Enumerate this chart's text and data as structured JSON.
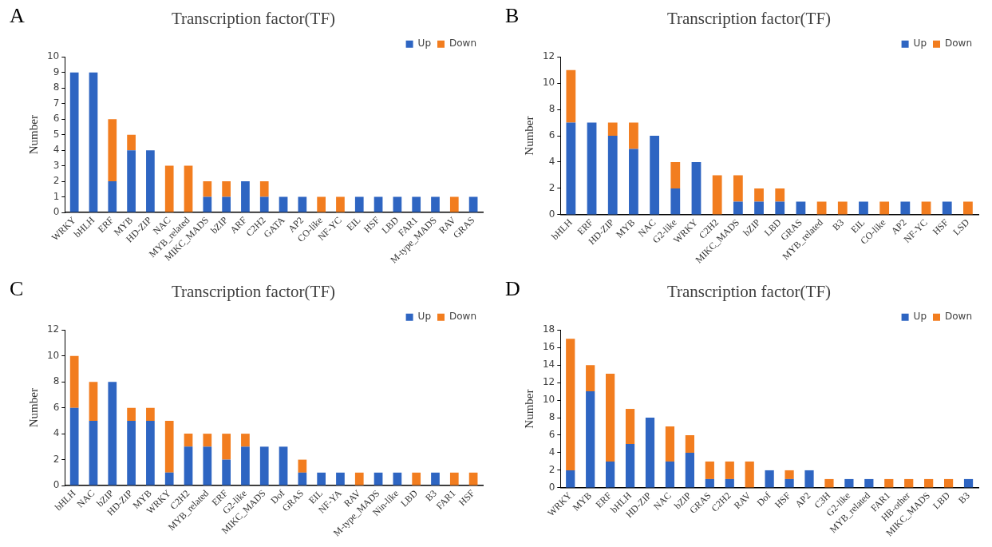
{
  "chart_data": [
    {
      "type": "bar",
      "title": "Transcription factor(TF)",
      "ylabel": "Number",
      "annotations": [
        "A"
      ],
      "stacked": true,
      "legend": "top right",
      "grid": false,
      "categories": [
        "WRKY",
        "bHLH",
        "ERF",
        "MYB",
        "HD-ZIP",
        "NAC",
        "MYB_related",
        "MIKC_MADS",
        "bZIP",
        "ARF",
        "C2H2",
        "GATA",
        "AP2",
        "CO-like",
        "NF-YC",
        "EIL",
        "HSF",
        "LBD",
        "FAR1",
        "M-type_MADS",
        "RAV",
        "GRAS"
      ],
      "series": [
        {
          "name": "Up",
          "color": "#2e65c2",
          "values": [
            9,
            9,
            2,
            4,
            4,
            0,
            0,
            1,
            1,
            2,
            1,
            1,
            1,
            0,
            0,
            1,
            1,
            1,
            1,
            1,
            0,
            1
          ]
        },
        {
          "name": "Down",
          "color": "#f27d1f",
          "values": [
            0,
            0,
            4,
            1,
            0,
            3,
            3,
            1,
            1,
            0,
            1,
            0,
            0,
            1,
            1,
            0,
            0,
            0,
            0,
            0,
            1,
            0
          ]
        }
      ],
      "ylim": [
        0,
        10
      ],
      "yticks": [
        0,
        1,
        2,
        3,
        4,
        5,
        6,
        7,
        8,
        9,
        10
      ]
    },
    {
      "type": "bar",
      "title": "Transcription factor(TF)",
      "ylabel": "Number",
      "annotations": [
        "B"
      ],
      "stacked": true,
      "legend": "top right",
      "grid": false,
      "categories": [
        "bHLH",
        "ERF",
        "HD-ZIP",
        "MYB",
        "NAC",
        "G2-like",
        "WRKY",
        "C2H2",
        "MIKC_MADS",
        "bZIP",
        "LBD",
        "GRAS",
        "MYB_related",
        "B3",
        "EIL",
        "CO-like",
        "AP2",
        "NF-YC",
        "HSF",
        "LSD"
      ],
      "series": [
        {
          "name": "Up",
          "color": "#2e65c2",
          "values": [
            7,
            7,
            6,
            5,
            6,
            2,
            4,
            0,
            1,
            1,
            1,
            1,
            0,
            0,
            1,
            0,
            1,
            0,
            1,
            0
          ]
        },
        {
          "name": "Down",
          "color": "#f27d1f",
          "values": [
            4,
            0,
            1,
            2,
            0,
            2,
            0,
            3,
            2,
            1,
            1,
            0,
            1,
            1,
            0,
            1,
            0,
            1,
            0,
            1
          ]
        }
      ],
      "ylim": [
        0,
        12
      ],
      "yticks": [
        0,
        2,
        4,
        6,
        8,
        10,
        12
      ]
    },
    {
      "type": "bar",
      "title": "Transcription factor(TF)",
      "ylabel": "Number",
      "annotations": [
        "C"
      ],
      "stacked": true,
      "legend": "top right",
      "grid": false,
      "categories": [
        "bHLH",
        "NAC",
        "bZIP",
        "HD-ZIP",
        "MYB",
        "WRKY",
        "C2H2",
        "MYB_related",
        "ERF",
        "G2-like",
        "MIKC_MADS",
        "Dof",
        "GRAS",
        "EIL",
        "NF-YA",
        "RAV",
        "M-type_MADS",
        "Nin-like",
        "LBD",
        "B3",
        "FAR1",
        "HSF"
      ],
      "series": [
        {
          "name": "Up",
          "color": "#2e65c2",
          "values": [
            6,
            5,
            8,
            5,
            5,
            1,
            3,
            3,
            2,
            3,
            3,
            3,
            1,
            1,
            1,
            0,
            1,
            1,
            0,
            1,
            0,
            0
          ]
        },
        {
          "name": "Down",
          "color": "#f27d1f",
          "values": [
            4,
            3,
            0,
            1,
            1,
            4,
            1,
            1,
            2,
            1,
            0,
            0,
            1,
            0,
            0,
            1,
            0,
            0,
            1,
            0,
            1,
            1
          ]
        }
      ],
      "ylim": [
        0,
        12
      ],
      "yticks": [
        0,
        2,
        4,
        6,
        8,
        10,
        12
      ]
    },
    {
      "type": "bar",
      "title": "Transcription factor(TF)",
      "ylabel": "Number",
      "annotations": [
        "D"
      ],
      "stacked": true,
      "legend": "top right",
      "grid": false,
      "categories": [
        "WRKY",
        "MYB",
        "ERF",
        "bHLH",
        "HD-ZIP",
        "NAC",
        "bZIP",
        "GRAS",
        "C2H2",
        "RAV",
        "Dof",
        "HSF",
        "AP2",
        "C3H",
        "G2-like",
        "MYB_related",
        "FAR1",
        "HB-other",
        "MIKC_MADS",
        "LBD",
        "B3"
      ],
      "series": [
        {
          "name": "Up",
          "color": "#2e65c2",
          "values": [
            2,
            11,
            3,
            5,
            8,
            3,
            4,
            1,
            1,
            0,
            2,
            1,
            2,
            0,
            1,
            1,
            0,
            0,
            0,
            0,
            1
          ]
        },
        {
          "name": "Down",
          "color": "#f27d1f",
          "values": [
            15,
            3,
            10,
            4,
            0,
            4,
            2,
            2,
            2,
            3,
            0,
            1,
            0,
            1,
            0,
            0,
            1,
            1,
            1,
            1,
            0
          ]
        }
      ],
      "ylim": [
        0,
        18
      ],
      "yticks": [
        0,
        2,
        4,
        6,
        8,
        10,
        12,
        14,
        16,
        18
      ]
    }
  ]
}
